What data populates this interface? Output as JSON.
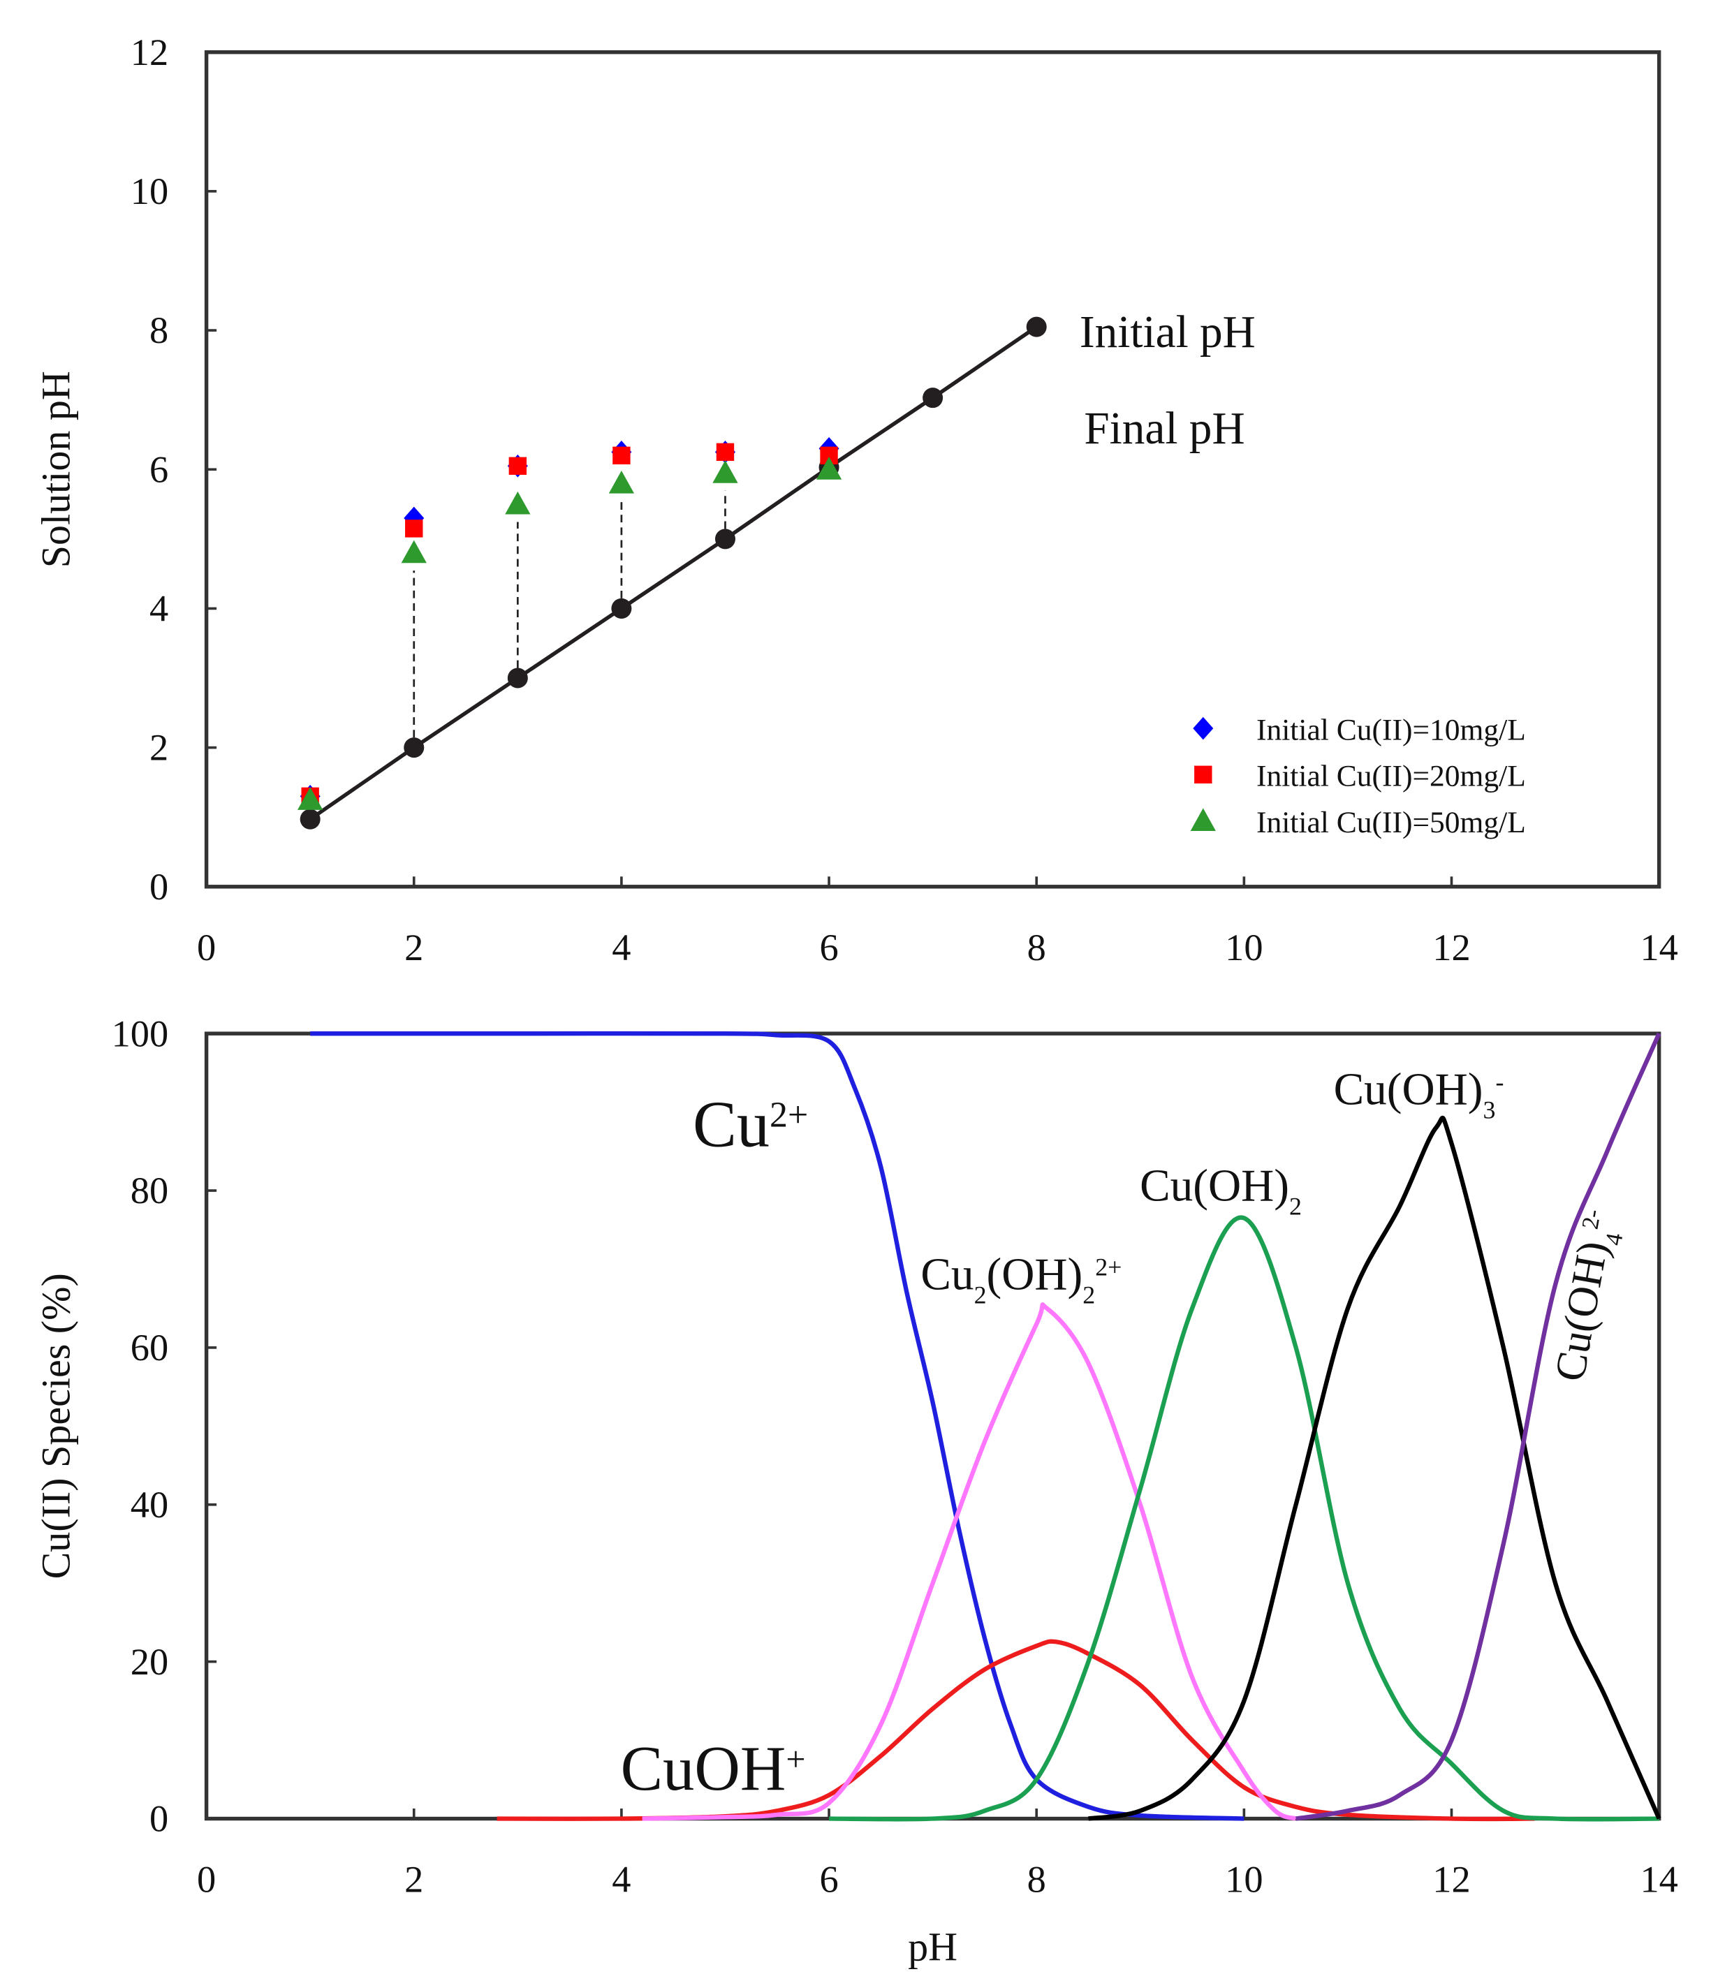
{
  "chart_data": [
    {
      "type": "scatter",
      "ylabel": "Solution pH",
      "xlim": [
        0,
        14
      ],
      "xticks": [
        0,
        2,
        4,
        6,
        8,
        10,
        12,
        14
      ],
      "ylim": [
        0,
        12
      ],
      "yticks": [
        0,
        2,
        4,
        6,
        8,
        10,
        12
      ],
      "series": [
        {
          "name": "Initial pH",
          "color": "#231f20",
          "marker": "circle",
          "line": true,
          "legend": false,
          "x": [
            1,
            2,
            3,
            4,
            5,
            6,
            7,
            8
          ],
          "values": [
            0.97,
            2,
            3,
            4,
            5,
            6.03,
            7.03,
            8.05
          ]
        },
        {
          "name": "Initial Cu(II)=10mg/L",
          "color": "#0000ff",
          "marker": "diamond",
          "x": [
            1,
            2,
            3,
            4,
            5,
            6
          ],
          "values": [
            1.3,
            5.3,
            6.05,
            6.25,
            6.25,
            6.3
          ]
        },
        {
          "name": "Initial Cu(II)=20mg/L",
          "color": "#ff0000",
          "marker": "square",
          "x": [
            1,
            2,
            3,
            4,
            5,
            6
          ],
          "values": [
            1.3,
            5.15,
            6.05,
            6.2,
            6.25,
            6.2
          ]
        },
        {
          "name": "Initial Cu(II)=50mg/L",
          "color": "#2e9a2e",
          "marker": "triangle",
          "x": [
            1,
            2,
            3,
            4,
            5,
            6
          ],
          "values": [
            1.25,
            4.8,
            5.5,
            5.8,
            5.95,
            6.0
          ]
        }
      ],
      "annotations": [
        {
          "segments": [
            {
              "text": "Final pH"
            }
          ],
          "color": "#1a1aff"
        }
      ]
    },
    {
      "type": "line",
      "xlabel": "pH",
      "ylabel": "Cu(II) Species (%)",
      "xlim": [
        0,
        14
      ],
      "xticks": [
        0,
        2,
        4,
        6,
        8,
        10,
        12,
        14
      ],
      "ylim": [
        0,
        100
      ],
      "yticks": [
        0,
        20,
        40,
        60,
        80,
        100
      ],
      "series": [
        {
          "name": "Cu2+",
          "color": "#1f1fe0",
          "x": [
            1,
            3,
            5,
            5.5,
            6,
            6.25,
            6.5,
            6.75,
            7,
            7.25,
            7.5,
            7.75,
            8,
            8.5,
            9,
            10
          ],
          "values": [
            100,
            100,
            100,
            99.8,
            99,
            93,
            83,
            67,
            53,
            37,
            23,
            12,
            5,
            1.5,
            0.4,
            0
          ]
        },
        {
          "name": "CuOH+",
          "color": "#ee1c1c",
          "x": [
            2.8,
            4,
            5,
            5.5,
            6,
            6.5,
            7,
            7.5,
            8,
            8.2,
            8.5,
            9,
            9.5,
            10,
            10.5,
            11,
            12,
            12.8
          ],
          "values": [
            0,
            0,
            0.3,
            1,
            3,
            8,
            14,
            19,
            22,
            22.5,
            21,
            17,
            10,
            4,
            1.5,
            0.5,
            0,
            0
          ]
        },
        {
          "name": "Cu2(OH)2 2+",
          "color": "#ff77ff",
          "x": [
            4.2,
            5,
            5.5,
            6,
            6.5,
            7,
            7.5,
            8,
            8.1,
            8.5,
            9,
            9.5,
            10,
            10.3,
            10.5
          ],
          "values": [
            0,
            0.2,
            0.5,
            2,
            12,
            30,
            48,
            63,
            65,
            58,
            40,
            18,
            6,
            1,
            0
          ]
        },
        {
          "name": "Cu(OH)2",
          "color": "#1aa050",
          "x": [
            6,
            7,
            7.5,
            8,
            8.5,
            9,
            9.5,
            10,
            10.5,
            11,
            11.5,
            12,
            12.5,
            13,
            14
          ],
          "values": [
            0,
            0,
            1,
            5,
            20,
            42,
            65,
            76.5,
            60,
            30,
            14,
            7,
            1,
            0,
            0
          ]
        },
        {
          "name": "Cu(OH)3-",
          "color": "#000000",
          "x": [
            8.5,
            9,
            9.5,
            10,
            10.5,
            11,
            11.5,
            11.85,
            12,
            12.5,
            13,
            13.5,
            14
          ],
          "values": [
            0,
            1,
            5,
            15,
            40,
            65,
            78,
            88,
            86,
            60,
            30,
            15,
            0
          ]
        },
        {
          "name": "Cu(OH)4 2-",
          "color": "#7030a0",
          "x": [
            10.5,
            11,
            11.5,
            12,
            12.5,
            13,
            13.5,
            14
          ],
          "values": [
            0,
            1,
            3,
            10,
            35,
            68,
            85,
            100
          ]
        }
      ],
      "annotations": [
        {
          "segments": [
            {
              "text": "Cu"
            },
            {
              "text": "2+",
              "sup": true
            }
          ],
          "color": "#1f1fe0"
        },
        {
          "segments": [
            {
              "text": "CuOH"
            },
            {
              "text": "+",
              "sup": true
            }
          ],
          "color": "#ee1c1c"
        },
        {
          "segments": [
            {
              "text": "Cu"
            },
            {
              "text": "2",
              "sub": true
            },
            {
              "text": "(OH)"
            },
            {
              "text": "2",
              "sub": true
            },
            {
              "text": "2+",
              "sup": true
            }
          ],
          "color": "#ff55ff"
        },
        {
          "segments": [
            {
              "text": "Cu(OH)"
            },
            {
              "text": "2",
              "sub": true
            }
          ],
          "color": "#1a8a40"
        },
        {
          "segments": [
            {
              "text": "Cu(OH)"
            },
            {
              "text": "3",
              "sub": true
            },
            {
              "text": "-",
              "sup": true
            }
          ],
          "color": "#000000"
        },
        {
          "segments": [
            {
              "text": "Cu(OH)"
            },
            {
              "text": "4",
              "sub": true
            },
            {
              "text": "2-",
              "sup": true
            }
          ],
          "color": "#7030a0"
        }
      ]
    }
  ]
}
